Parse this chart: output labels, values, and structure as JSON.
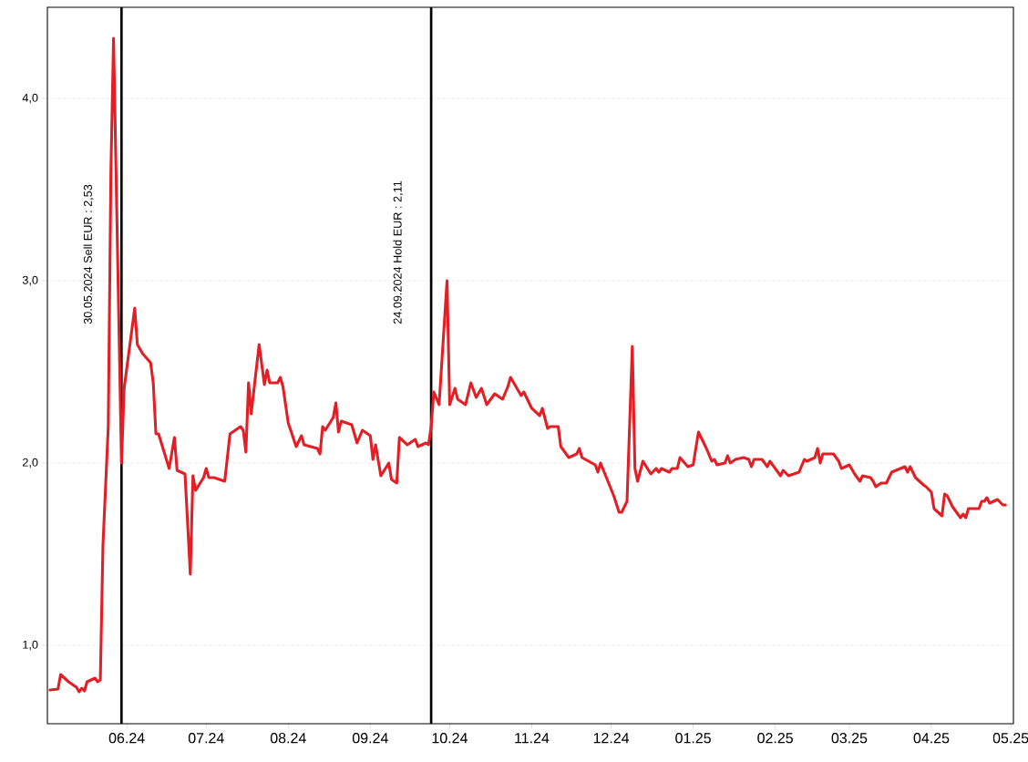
{
  "chart_data": {
    "type": "line",
    "xlim": [
      "2024-05-02",
      "2025-05-02"
    ],
    "xticks": [
      {
        "value": "2024-06-01",
        "label": "06.24"
      },
      {
        "value": "2024-07-01",
        "label": "07.24"
      },
      {
        "value": "2024-08-01",
        "label": "08.24"
      },
      {
        "value": "2024-09-01",
        "label": "09.24"
      },
      {
        "value": "2024-10-01",
        "label": "10.24"
      },
      {
        "value": "2024-11-01",
        "label": "11.24"
      },
      {
        "value": "2024-12-01",
        "label": "12.24"
      },
      {
        "value": "2025-01-01",
        "label": "01.25"
      },
      {
        "value": "2025-02-01",
        "label": "02.25"
      },
      {
        "value": "2025-03-01",
        "label": "03.25"
      },
      {
        "value": "2025-04-01",
        "label": "04.25"
      },
      {
        "value": "2025-05-01",
        "label": "05.25"
      }
    ],
    "ylim": [
      0.57,
      4.5
    ],
    "yticks": [
      {
        "value": 1,
        "label": "1,0"
      },
      {
        "value": 2,
        "label": "2,0"
      },
      {
        "value": 3,
        "label": "3,0"
      },
      {
        "value": 4,
        "label": "4,0"
      }
    ],
    "grid": "y",
    "ref_lines": [
      {
        "axis": "x",
        "value": "2024-05-30",
        "label": "30.05.2024 Sell EUR : 2,53",
        "color": "#000000"
      },
      {
        "axis": "x",
        "value": "2024-09-24",
        "label": "24.09.2024 Hold EUR : 2,11",
        "color": "#000000"
      }
    ],
    "series": [
      {
        "color": "#e31e24",
        "x": [
          "2024-05-03",
          "2024-05-06",
          "2024-05-07",
          "2024-05-10",
          "2024-05-13",
          "2024-05-14",
          "2024-05-15",
          "2024-05-16",
          "2024-05-17",
          "2024-05-20",
          "2024-05-21",
          "2024-05-22",
          "2024-05-23",
          "2024-05-25",
          "2024-05-26",
          "2024-05-27",
          "2024-05-28",
          "2024-05-30",
          "2024-05-31",
          "2024-06-04",
          "2024-06-05",
          "2024-06-07",
          "2024-06-10",
          "2024-06-11",
          "2024-06-12",
          "2024-06-13",
          "2024-06-17",
          "2024-06-19",
          "2024-06-20",
          "2024-06-23",
          "2024-06-25",
          "2024-06-26",
          "2024-06-27",
          "2024-06-30",
          "2024-07-01",
          "2024-07-02",
          "2024-07-04",
          "2024-07-08",
          "2024-07-10",
          "2024-07-14",
          "2024-07-15",
          "2024-07-16",
          "2024-07-17",
          "2024-07-18",
          "2024-07-21",
          "2024-07-23",
          "2024-07-24",
          "2024-07-25",
          "2024-07-28",
          "2024-07-29",
          "2024-07-30",
          "2024-08-01",
          "2024-08-04",
          "2024-08-06",
          "2024-08-07",
          "2024-08-12",
          "2024-08-13",
          "2024-08-14",
          "2024-08-15",
          "2024-08-18",
          "2024-08-19",
          "2024-08-20",
          "2024-08-21",
          "2024-08-25",
          "2024-08-27",
          "2024-08-29",
          "2024-09-01",
          "2024-09-02",
          "2024-09-03",
          "2024-09-05",
          "2024-09-08",
          "2024-09-09",
          "2024-09-11",
          "2024-09-12",
          "2024-09-15",
          "2024-09-18",
          "2024-09-19",
          "2024-09-22",
          "2024-09-23",
          "2024-09-24",
          "2024-09-25",
          "2024-09-27",
          "2024-09-30",
          "2024-10-01",
          "2024-10-03",
          "2024-10-04",
          "2024-10-07",
          "2024-10-09",
          "2024-10-11",
          "2024-10-13",
          "2024-10-15",
          "2024-10-18",
          "2024-10-21",
          "2024-10-23",
          "2024-10-24",
          "2024-10-28",
          "2024-10-29",
          "2024-11-01",
          "2024-11-04",
          "2024-11-05",
          "2024-11-07",
          "2024-11-08",
          "2024-11-11",
          "2024-11-12",
          "2024-11-15",
          "2024-11-18",
          "2024-11-19",
          "2024-11-20",
          "2024-11-25",
          "2024-11-26",
          "2024-11-27",
          "2024-12-02",
          "2024-12-04",
          "2024-12-05",
          "2024-12-07",
          "2024-12-09",
          "2024-12-10",
          "2024-12-11",
          "2024-12-13",
          "2024-12-16",
          "2024-12-18",
          "2024-12-19",
          "2024-12-20",
          "2024-12-23",
          "2024-12-24",
          "2024-12-26",
          "2024-12-27",
          "2024-12-30",
          "2025-01-01",
          "2025-01-03",
          "2025-01-06",
          "2025-01-08",
          "2025-01-09",
          "2025-01-10",
          "2025-01-13",
          "2025-01-14",
          "2025-01-15",
          "2025-01-17",
          "2025-01-20",
          "2025-01-22",
          "2025-01-23",
          "2025-01-24",
          "2025-01-27",
          "2025-01-29",
          "2025-01-30",
          "2025-02-01",
          "2025-02-03",
          "2025-02-04",
          "2025-02-06",
          "2025-02-10",
          "2025-02-12",
          "2025-02-13",
          "2025-02-16",
          "2025-02-17",
          "2025-02-18",
          "2025-02-19",
          "2025-02-23",
          "2025-02-25",
          "2025-02-26",
          "2025-03-01",
          "2025-03-03",
          "2025-03-05",
          "2025-03-06",
          "2025-03-09",
          "2025-03-10",
          "2025-03-11",
          "2025-03-13",
          "2025-03-15",
          "2025-03-17",
          "2025-03-22",
          "2025-03-23",
          "2025-03-24",
          "2025-03-26",
          "2025-03-29",
          "2025-03-30",
          "2025-04-01",
          "2025-04-02",
          "2025-04-05",
          "2025-04-06",
          "2025-04-07",
          "2025-04-09",
          "2025-04-12",
          "2025-04-13",
          "2025-04-14",
          "2025-04-15",
          "2025-04-19",
          "2025-04-20",
          "2025-04-21",
          "2025-04-22",
          "2025-04-23",
          "2025-04-26",
          "2025-04-28",
          "2025-04-29"
        ],
        "values": [
          0.755,
          0.76,
          0.84,
          0.8,
          0.77,
          0.745,
          0.765,
          0.75,
          0.8,
          0.82,
          0.8,
          0.81,
          1.55,
          2.2,
          3.6,
          4.33,
          3.55,
          2.0,
          2.41,
          2.85,
          2.65,
          2.6,
          2.55,
          2.44,
          2.16,
          2.16,
          1.97,
          2.14,
          1.96,
          1.94,
          1.39,
          1.93,
          1.85,
          1.92,
          1.97,
          1.92,
          1.92,
          1.9,
          2.16,
          2.2,
          2.18,
          2.06,
          2.44,
          2.27,
          2.65,
          2.43,
          2.51,
          2.44,
          2.44,
          2.47,
          2.42,
          2.22,
          2.09,
          2.15,
          2.1,
          2.08,
          2.05,
          2.2,
          2.18,
          2.25,
          2.33,
          2.17,
          2.23,
          2.21,
          2.11,
          2.18,
          2.15,
          2.02,
          2.1,
          1.93,
          2.0,
          1.91,
          1.89,
          2.14,
          2.1,
          2.13,
          2.09,
          2.11,
          2.1,
          2.2,
          2.39,
          2.32,
          3.0,
          2.32,
          2.41,
          2.35,
          2.32,
          2.44,
          2.36,
          2.41,
          2.32,
          2.38,
          2.35,
          2.42,
          2.47,
          2.37,
          2.39,
          2.3,
          2.26,
          2.3,
          2.19,
          2.2,
          2.2,
          2.09,
          2.03,
          2.05,
          2.08,
          2.03,
          1.99,
          1.95,
          2.0,
          1.82,
          1.73,
          1.73,
          1.79,
          2.64,
          1.97,
          1.9,
          2.01,
          1.94,
          1.97,
          1.95,
          1.97,
          1.95,
          1.97,
          1.97,
          2.03,
          1.98,
          1.99,
          2.17,
          2.08,
          2.01,
          2.02,
          1.99,
          2.0,
          2.04,
          2.0,
          2.02,
          2.03,
          2.02,
          1.98,
          2.02,
          2.02,
          1.98,
          2.01,
          1.97,
          1.93,
          1.96,
          1.93,
          1.95,
          2.02,
          2.01,
          2.03,
          2.08,
          2.0,
          2.05,
          2.05,
          2.01,
          1.97,
          1.99,
          1.94,
          1.9,
          1.93,
          1.92,
          1.9,
          1.87,
          1.89,
          1.89,
          1.95,
          1.98,
          1.95,
          1.98,
          1.92,
          1.88,
          1.87,
          1.84,
          1.75,
          1.71,
          1.83,
          1.82,
          1.76,
          1.7,
          1.72,
          1.7,
          1.75,
          1.75,
          1.79,
          1.79,
          1.81,
          1.78,
          1.8,
          1.77,
          1.77
        ]
      }
    ]
  }
}
